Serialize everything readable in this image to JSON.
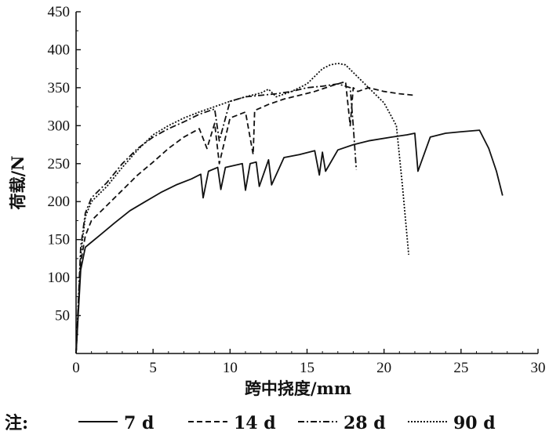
{
  "chart_data": {
    "type": "line",
    "xlabel": "跨中挠度/mm",
    "ylabel": "荷载/N",
    "xlim": [
      0,
      30
    ],
    "ylim": [
      0,
      450
    ],
    "xticks": [
      0,
      5,
      10,
      15,
      20,
      25,
      30
    ],
    "yticks": [
      50,
      100,
      150,
      200,
      250,
      300,
      350,
      400,
      450
    ],
    "legend_prefix": "注:",
    "legend_position": "bottom",
    "grid": false,
    "series": [
      {
        "name": "7 d",
        "dash": "solid",
        "x": [
          0,
          0.3,
          0.6,
          0.9,
          1.5,
          2.5,
          3.5,
          4.5,
          5.5,
          6.5,
          7.5,
          8.1,
          8.25,
          8.6,
          9.2,
          9.4,
          9.7,
          10.8,
          11.0,
          11.3,
          11.7,
          11.9,
          12.5,
          12.7,
          13.5,
          14.5,
          15.5,
          15.8,
          16.0,
          16.2,
          17.0,
          18.0,
          19.0,
          20.5,
          21.5,
          22.0,
          22.2,
          23.0,
          24.0,
          25.0,
          26.2,
          26.8,
          27.3,
          27.7
        ],
        "y": [
          0,
          110,
          140,
          145,
          155,
          172,
          188,
          200,
          212,
          222,
          230,
          236,
          205,
          240,
          245,
          216,
          245,
          250,
          215,
          250,
          252,
          220,
          255,
          222,
          258,
          262,
          267,
          235,
          265,
          240,
          268,
          275,
          280,
          285,
          288,
          290,
          240,
          285,
          290,
          292,
          294,
          270,
          240,
          208
        ]
      },
      {
        "name": "14 d",
        "dash": "dashed",
        "x": [
          0,
          0.3,
          0.6,
          1.0,
          2.0,
          3.0,
          4.0,
          5.0,
          6.0,
          7.0,
          8.0,
          8.5,
          9.0,
          9.3,
          10.0,
          11.0,
          11.5,
          11.6,
          12.5,
          13.5,
          14.5,
          15.5,
          16.5,
          17.5,
          17.8,
          18.0,
          18.3,
          19.0,
          20.0,
          21.0,
          22.0
        ],
        "y": [
          0,
          120,
          155,
          175,
          195,
          215,
          235,
          252,
          270,
          285,
          296,
          270,
          303,
          250,
          310,
          318,
          262,
          320,
          328,
          335,
          340,
          345,
          352,
          358,
          300,
          350,
          345,
          350,
          345,
          342,
          340
        ]
      },
      {
        "name": "28 d",
        "dash": "dash-dot",
        "x": [
          0,
          0.3,
          0.6,
          1.0,
          2.0,
          3.0,
          4.0,
          5.0,
          6.0,
          7.0,
          8.0,
          9.0,
          9.3,
          10.0,
          11.0,
          12.0,
          13.0,
          14.0,
          15.0,
          16.0,
          17.0,
          17.8,
          18.0,
          18.2
        ],
        "y": [
          0,
          140,
          185,
          205,
          225,
          250,
          270,
          285,
          296,
          305,
          315,
          322,
          280,
          332,
          338,
          340,
          342,
          345,
          350,
          352,
          355,
          350,
          300,
          242
        ]
      },
      {
        "name": "90 d",
        "dash": "dotted",
        "x": [
          0,
          0.3,
          0.6,
          1.0,
          2.0,
          3.0,
          4.0,
          5.0,
          6.0,
          7.0,
          8.0,
          9.0,
          10.0,
          11.0,
          12.0,
          12.5,
          13.0,
          14.0,
          15.0,
          15.5,
          16.0,
          16.5,
          17.0,
          17.5,
          18.0,
          19.0,
          20.0,
          20.8,
          21.2,
          21.6
        ],
        "y": [
          0,
          130,
          180,
          200,
          220,
          245,
          268,
          288,
          300,
          310,
          318,
          325,
          332,
          338,
          343,
          348,
          338,
          345,
          355,
          365,
          375,
          380,
          382,
          380,
          370,
          350,
          330,
          300,
          220,
          130
        ]
      }
    ]
  }
}
